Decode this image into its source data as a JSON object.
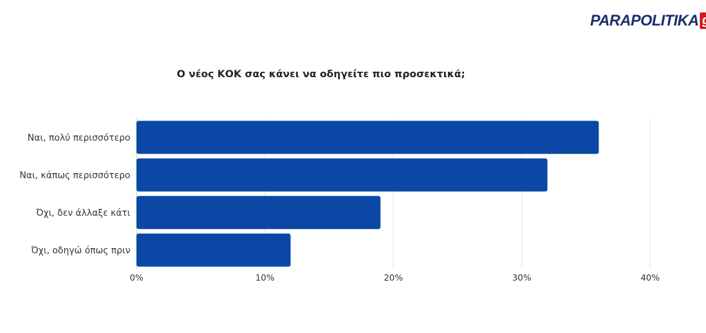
{
  "logo": {
    "text": "PARAPOLITIKA",
    "badge": "gr"
  },
  "colors": {
    "bar": "#0b48a6",
    "grid": "#e6e6e6",
    "axis": "#cccccc",
    "logo_blue": "#1b2f6b",
    "logo_red": "#d71920"
  },
  "chart_data": {
    "type": "bar",
    "orientation": "horizontal",
    "title": "Ο νέος ΚΟΚ σας κάνει να οδηγείτε πιο προσεκτικά;",
    "categories": [
      "Ναι, πολύ περισσότερο",
      "Ναι, κάπως περισσότερο",
      "Όχι, δεν άλλαξε κάτι",
      "Όχι, οδηγώ όπως πριν"
    ],
    "values": [
      36,
      32,
      19,
      12
    ],
    "xlim": [
      0,
      40
    ],
    "ticks": [
      "0%",
      "10%",
      "20%",
      "30%",
      "40%"
    ],
    "grid": true,
    "legend": "none"
  }
}
